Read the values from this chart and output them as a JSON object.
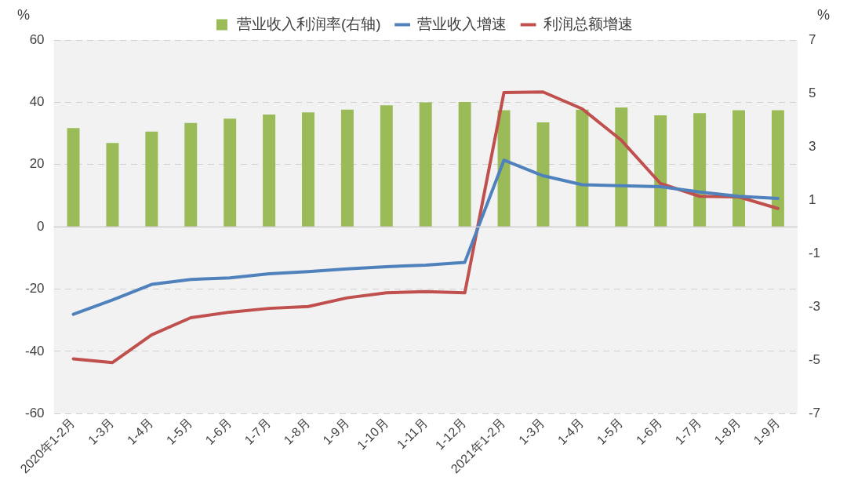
{
  "chart_data": {
    "type": "bar",
    "ylabel": "%",
    "y2label": "%",
    "categories": [
      "2020年1-2月",
      "1-3月",
      "1-4月",
      "1-5月",
      "1-6月",
      "1-7月",
      "1-8月",
      "1-9月",
      "1-10月",
      "1-11月",
      "1-12月",
      "2021年1-2月",
      "1-3月",
      "1-4月",
      "1-5月",
      "1-6月",
      "1-7月",
      "1-8月",
      "1-9月"
    ],
    "series": [
      {
        "name": "营业收入利润率(右轴)",
        "axis": "y2",
        "color": "#9bbb59",
        "values": [
          3.7,
          3.14,
          3.57,
          3.89,
          4.05,
          4.21,
          4.29,
          4.39,
          4.55,
          4.66,
          4.68,
          4.37,
          3.91,
          4.39,
          4.47,
          4.18,
          4.26,
          4.37,
          4.37
        ]
      },
      {
        "name": "营业收入增速",
        "type": "line",
        "color": "#4f81bd",
        "values": [
          -28.1,
          -23.5,
          -18.5,
          -16.9,
          -16.4,
          -15.1,
          -14.4,
          -13.5,
          -12.8,
          -12.3,
          -11.4,
          21.4,
          16.4,
          13.5,
          13.2,
          12.9,
          11.2,
          9.8,
          9.1
        ]
      },
      {
        "name": "利润总额增速",
        "type": "line",
        "color": "#c0504d",
        "values": [
          -42.4,
          -43.6,
          -34.7,
          -29.2,
          -27.4,
          -26.2,
          -25.6,
          -22.8,
          -21.2,
          -20.8,
          -21.2,
          43.1,
          43.3,
          37.9,
          27.8,
          13.9,
          9.8,
          9.6,
          5.9
        ]
      }
    ],
    "ylim": [
      -60,
      60
    ],
    "yticks": [
      -60,
      -40,
      -20,
      0,
      20,
      40,
      60
    ],
    "y2lim": [
      -7,
      7
    ],
    "y2ticks": [
      -7,
      -5,
      -3,
      -1,
      1,
      3,
      5,
      7
    ],
    "grid": "y",
    "legend": "top",
    "marker": "none",
    "line_style": "solid"
  }
}
